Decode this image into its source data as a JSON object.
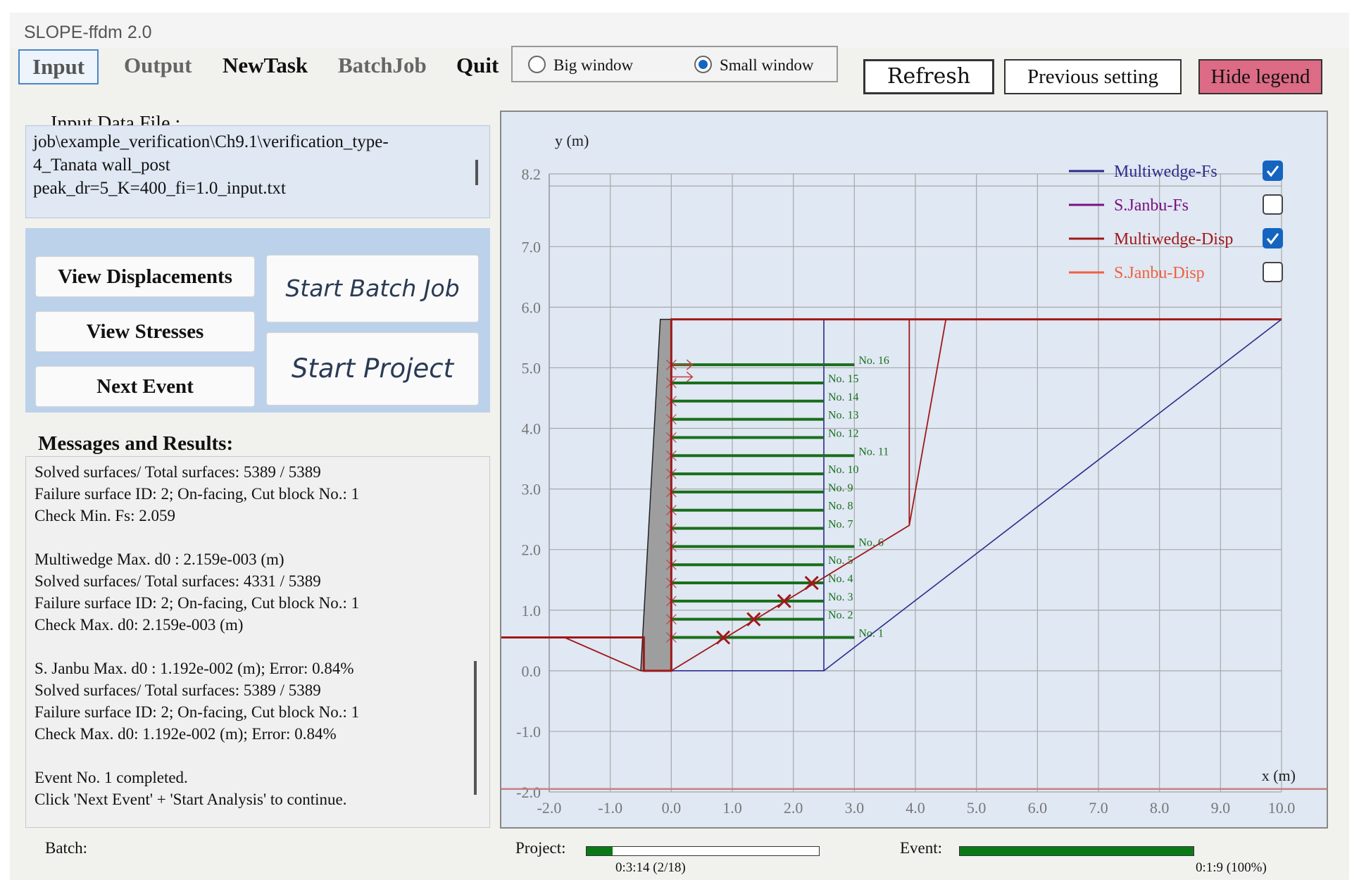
{
  "window": {
    "title": "SLOPE-ffdm 2.0"
  },
  "menu": {
    "input": "Input",
    "output": "Output",
    "newtask": "NewTask",
    "batchjob": "BatchJob",
    "quit": "Quit"
  },
  "window_mode": {
    "big": "Big window",
    "small": "Small window",
    "selected": "Small window"
  },
  "toolbar": {
    "refresh": "Refresh",
    "previous": "Previous setting",
    "hide_legend": "Hide legend"
  },
  "input_file": {
    "label": "Input Data File :",
    "lines": [
      "job\\example_verification\\Ch9.1\\verification_type-",
      "4_Tanata wall_post",
      "peak_dr=5_K=400_fi=1.0_input.txt"
    ]
  },
  "actions": {
    "view_displacements": "View Displacements",
    "view_stresses": "View Stresses",
    "next_event": "Next Event",
    "start_batch": "Start Batch Job",
    "start_project": "Start Project"
  },
  "messages": {
    "label": "Messages and Results:",
    "lines": [
      "Solved surfaces/ Total surfaces: 5389 / 5389",
      "Failure surface ID: 2; On-facing, Cut block No.: 1",
      "Check Min. Fs: 2.059",
      "",
      "Multiwedge Max. d0 : 2.159e-003 (m)",
      "Solved surfaces/ Total surfaces: 4331 / 5389",
      "Failure surface ID: 2; On-facing, Cut block No.: 1",
      "Check Max. d0: 2.159e-003 (m)",
      "",
      "S. Janbu Max. d0 : 1.192e-002 (m); Error: 0.84%",
      "Solved surfaces/ Total surfaces: 5389 / 5389",
      "Failure surface ID: 2; On-facing, Cut block No.: 1",
      "Check Max. d0: 1.192e-002 (m); Error: 0.84%",
      "",
      "Event No. 1 completed.",
      "Click 'Next Event' + 'Start Analysis' to continue."
    ]
  },
  "status": {
    "batch_label": "Batch:",
    "project_label": "Project:",
    "project_progress": 0.111,
    "project_text": "0:3:14 (2/18)",
    "event_label": "Event:",
    "event_progress": 1.0,
    "event_text": "0:1:9 (100%)"
  },
  "chart_data": {
    "type": "line",
    "xlabel": "x (m)",
    "ylabel": "y (m)",
    "xlim": [
      -2.0,
      10.0
    ],
    "ylim": [
      -2.0,
      8.2
    ],
    "x_ticks": [
      "-2.0",
      "-1.0",
      "0.0",
      "1.0",
      "2.0",
      "3.0",
      "4.0",
      "5.0",
      "6.0",
      "7.0",
      "8.0",
      "9.0",
      "10.0"
    ],
    "y_ticks": [
      {
        "v": 8.2,
        "t": "8.2"
      },
      {
        "v": 7.0,
        "t": "7.0"
      },
      {
        "v": 6.0,
        "t": "6.0"
      },
      {
        "v": 5.0,
        "t": "5.0"
      },
      {
        "v": 4.0,
        "t": "4.0"
      },
      {
        "v": 3.0,
        "t": "3.0"
      },
      {
        "v": 2.0,
        "t": "2.0"
      },
      {
        "v": 1.0,
        "t": "1.0"
      },
      {
        "v": 0.0,
        "t": "0.0"
      },
      {
        "v": -1.0,
        "t": "-1.0"
      },
      {
        "v": -2.0,
        "t": "-2.0"
      }
    ],
    "grid": true,
    "legend_position": "top-right",
    "legend": [
      {
        "name": "Multiwedge-Fs",
        "color": "#2b2b8c",
        "checked": true
      },
      {
        "name": "S.Janbu-Fs",
        "color": "#7a1080",
        "checked": false
      },
      {
        "name": "Multiwedge-Disp",
        "color": "#a01818",
        "checked": true
      },
      {
        "name": "S.Janbu-Disp",
        "color": "#f06040",
        "checked": false
      }
    ],
    "colors": {
      "ground": "#a01818",
      "reinforcement": "#1a6e1a",
      "wall": "#9e9e9e",
      "slip": "#2b2b8c",
      "bottom_line": "#c98080"
    },
    "ground_line": [
      [
        -2.0,
        0.55
      ],
      [
        -0.45,
        0.55
      ],
      [
        -0.45,
        0.0
      ],
      [
        0.0,
        0.0
      ],
      [
        0.0,
        5.8
      ],
      [
        10.0,
        5.8
      ]
    ],
    "bottom_line": [
      [
        -2.0,
        -1.95
      ],
      [
        10.0,
        -1.95
      ]
    ],
    "wall": [
      [
        -0.5,
        0.0
      ],
      [
        0.0,
        0.0
      ],
      [
        0.0,
        5.8
      ],
      [
        -0.18,
        5.8
      ]
    ],
    "fs_surface": [
      [
        0.0,
        0.0
      ],
      [
        2.5,
        0.0
      ],
      [
        2.5,
        5.8
      ],
      [
        0.0,
        5.8
      ],
      [
        0.0,
        0.0
      ]
    ],
    "fs_slope": [
      [
        2.5,
        0.0
      ],
      [
        10.0,
        5.8
      ]
    ],
    "disp_surface": [
      [
        0.0,
        0.0
      ],
      [
        3.9,
        2.4
      ],
      [
        3.9,
        5.8
      ]
    ],
    "disp_outer": [
      [
        3.9,
        2.4
      ],
      [
        4.5,
        5.8
      ]
    ],
    "toe_wedge": [
      [
        -1.75,
        0.55
      ],
      [
        -0.5,
        0.0
      ]
    ],
    "reinforcements": [
      {
        "label": "No. 1",
        "y": 0.55,
        "len": 3.0
      },
      {
        "label": "No. 2",
        "y": 0.85,
        "len": 2.5
      },
      {
        "label": "No. 3",
        "y": 1.15,
        "len": 2.5
      },
      {
        "label": "No. 4",
        "y": 1.45,
        "len": 2.5
      },
      {
        "label": "No. 5",
        "y": 1.75,
        "len": 2.5
      },
      {
        "label": "No. 6",
        "y": 2.05,
        "len": 3.0
      },
      {
        "label": "No. 7",
        "y": 2.35,
        "len": 2.5
      },
      {
        "label": "No. 8",
        "y": 2.65,
        "len": 2.5
      },
      {
        "label": "No. 9",
        "y": 2.95,
        "len": 2.5
      },
      {
        "label": "No. 10",
        "y": 3.25,
        "len": 2.5
      },
      {
        "label": "No. 11",
        "y": 3.55,
        "len": 3.0
      },
      {
        "label": "No. 12",
        "y": 3.85,
        "len": 2.5
      },
      {
        "label": "No. 13",
        "y": 4.15,
        "len": 2.5
      },
      {
        "label": "No. 14",
        "y": 4.45,
        "len": 2.5
      },
      {
        "label": "No. 15",
        "y": 4.75,
        "len": 2.5
      },
      {
        "label": "No. 16",
        "y": 5.05,
        "len": 3.0
      }
    ],
    "failure_points": [
      [
        0.85,
        0.55
      ],
      [
        1.35,
        0.85
      ],
      [
        1.85,
        1.15
      ],
      [
        2.3,
        1.45
      ]
    ]
  }
}
